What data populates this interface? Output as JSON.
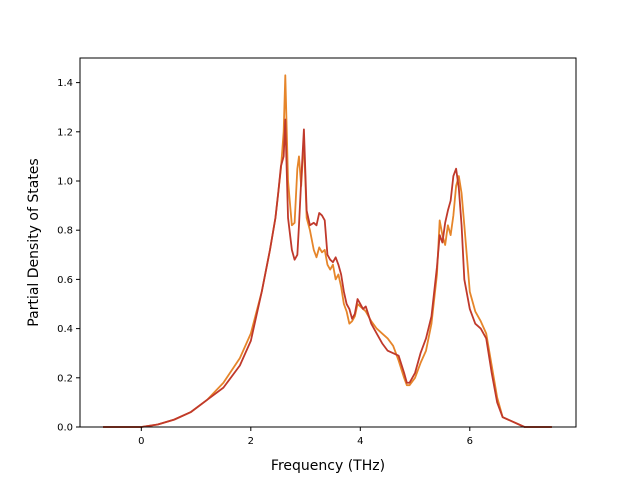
{
  "chart_data": {
    "type": "line",
    "title": "",
    "xlabel": "Frequency (THz)",
    "ylabel": "Partial Density of States",
    "xlim": [
      -1.12,
      7.94
    ],
    "ylim": [
      0.0,
      1.5
    ],
    "xticks": [
      0,
      2,
      4,
      6
    ],
    "yticks": [
      0.0,
      0.2,
      0.4,
      0.6,
      0.8,
      1.0,
      1.2,
      1.4
    ],
    "xtick_labels": [
      "0",
      "2",
      "4",
      "6"
    ],
    "ytick_labels": [
      "0.0",
      "0.2",
      "0.4",
      "0.6",
      "0.8",
      "1.0",
      "1.2",
      "1.4"
    ],
    "grid": false,
    "legend": "none",
    "series": [
      {
        "color": "#e6852a",
        "x": [
          -0.7,
          0.0,
          0.3,
          0.6,
          0.9,
          1.2,
          1.5,
          1.8,
          2.0,
          2.2,
          2.35,
          2.45,
          2.5,
          2.55,
          2.6,
          2.63,
          2.68,
          2.75,
          2.8,
          2.85,
          2.88,
          2.92,
          2.97,
          3.02,
          3.08,
          3.15,
          3.2,
          3.25,
          3.3,
          3.35,
          3.4,
          3.45,
          3.5,
          3.55,
          3.6,
          3.65,
          3.7,
          3.75,
          3.8,
          3.85,
          3.9,
          3.95,
          4.0,
          4.05,
          4.1,
          4.2,
          4.3,
          4.4,
          4.5,
          4.6,
          4.7,
          4.8,
          4.85,
          4.9,
          5.0,
          5.1,
          5.2,
          5.3,
          5.4,
          5.45,
          5.5,
          5.55,
          5.6,
          5.65,
          5.7,
          5.75,
          5.8,
          5.85,
          5.9,
          6.0,
          6.1,
          6.2,
          6.3,
          6.4,
          6.5,
          6.6,
          6.8,
          7.0,
          7.5
        ],
        "y": [
          0.0,
          0.0,
          0.01,
          0.03,
          0.06,
          0.11,
          0.18,
          0.28,
          0.38,
          0.55,
          0.72,
          0.85,
          0.95,
          1.05,
          1.2,
          1.43,
          1.0,
          0.82,
          0.83,
          1.05,
          1.1,
          0.98,
          1.17,
          0.85,
          0.8,
          0.72,
          0.69,
          0.73,
          0.71,
          0.72,
          0.66,
          0.64,
          0.66,
          0.6,
          0.62,
          0.57,
          0.5,
          0.47,
          0.42,
          0.43,
          0.45,
          0.5,
          0.49,
          0.48,
          0.47,
          0.43,
          0.4,
          0.38,
          0.36,
          0.33,
          0.27,
          0.2,
          0.17,
          0.17,
          0.2,
          0.26,
          0.31,
          0.42,
          0.62,
          0.84,
          0.78,
          0.74,
          0.82,
          0.78,
          0.86,
          0.98,
          1.02,
          0.95,
          0.82,
          0.55,
          0.47,
          0.43,
          0.38,
          0.25,
          0.12,
          0.04,
          0.02,
          0.0,
          0.0
        ]
      },
      {
        "color": "#c0392b",
        "x": [
          -0.7,
          0.0,
          0.3,
          0.6,
          0.9,
          1.2,
          1.5,
          1.8,
          2.0,
          2.2,
          2.35,
          2.45,
          2.5,
          2.55,
          2.6,
          2.63,
          2.68,
          2.75,
          2.8,
          2.85,
          2.88,
          2.92,
          2.97,
          3.02,
          3.08,
          3.15,
          3.2,
          3.25,
          3.3,
          3.35,
          3.4,
          3.45,
          3.5,
          3.55,
          3.6,
          3.65,
          3.7,
          3.75,
          3.8,
          3.85,
          3.9,
          3.95,
          4.0,
          4.05,
          4.1,
          4.2,
          4.3,
          4.4,
          4.5,
          4.6,
          4.7,
          4.8,
          4.85,
          4.9,
          5.0,
          5.1,
          5.2,
          5.3,
          5.4,
          5.45,
          5.5,
          5.55,
          5.6,
          5.65,
          5.7,
          5.75,
          5.8,
          5.85,
          5.9,
          6.0,
          6.1,
          6.2,
          6.3,
          6.4,
          6.5,
          6.6,
          6.8,
          7.0,
          7.5
        ],
        "y": [
          0.0,
          0.0,
          0.01,
          0.03,
          0.06,
          0.11,
          0.16,
          0.25,
          0.35,
          0.55,
          0.72,
          0.85,
          0.95,
          1.06,
          1.1,
          1.25,
          0.85,
          0.72,
          0.68,
          0.7,
          0.82,
          1.0,
          1.21,
          0.88,
          0.82,
          0.83,
          0.82,
          0.87,
          0.86,
          0.84,
          0.7,
          0.68,
          0.67,
          0.69,
          0.66,
          0.62,
          0.55,
          0.5,
          0.48,
          0.44,
          0.46,
          0.52,
          0.5,
          0.48,
          0.49,
          0.42,
          0.38,
          0.34,
          0.31,
          0.3,
          0.29,
          0.22,
          0.18,
          0.18,
          0.22,
          0.3,
          0.36,
          0.45,
          0.65,
          0.78,
          0.75,
          0.83,
          0.88,
          0.92,
          1.02,
          1.05,
          0.97,
          0.82,
          0.6,
          0.48,
          0.42,
          0.4,
          0.36,
          0.22,
          0.1,
          0.04,
          0.02,
          0.0,
          0.0
        ]
      }
    ]
  }
}
